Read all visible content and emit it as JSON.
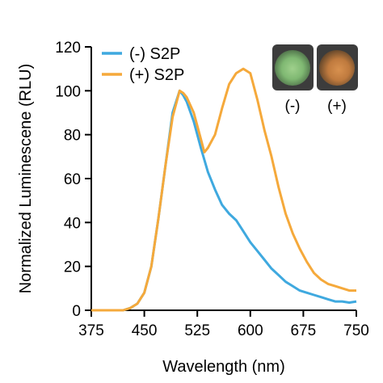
{
  "chart_data": {
    "type": "line",
    "title": "",
    "xlabel": "Wavelength (nm)",
    "ylabel": "Normalized Luminescene (RLU)",
    "xlim": [
      375,
      750
    ],
    "ylim": [
      0,
      120
    ],
    "xticks": [
      375,
      450,
      525,
      600,
      675,
      750
    ],
    "yticks": [
      0,
      20,
      40,
      60,
      80,
      100,
      120
    ],
    "grid": false,
    "legend_position": "top-left",
    "series": [
      {
        "name": "(-) S2P",
        "color": "#3fa9df",
        "x": [
          375,
          390,
          405,
          420,
          430,
          440,
          450,
          460,
          470,
          480,
          490,
          500,
          505,
          510,
          520,
          530,
          540,
          550,
          560,
          570,
          580,
          590,
          600,
          610,
          620,
          630,
          640,
          650,
          660,
          670,
          680,
          690,
          700,
          710,
          720,
          730,
          740,
          750
        ],
        "y": [
          0,
          0,
          0,
          0,
          1,
          3,
          8,
          20,
          42,
          66,
          90,
          100,
          98,
          95,
          86,
          74,
          63,
          55,
          48,
          44,
          41,
          36,
          31,
          27,
          23,
          19,
          16,
          13,
          11,
          9,
          8,
          7,
          6,
          5,
          4,
          4,
          3.5,
          4
        ]
      },
      {
        "name": "(+) S2P",
        "color": "#f5a93b",
        "x": [
          375,
          390,
          405,
          420,
          430,
          440,
          450,
          460,
          470,
          480,
          490,
          500,
          505,
          510,
          520,
          530,
          535,
          540,
          550,
          560,
          570,
          580,
          590,
          600,
          610,
          620,
          630,
          640,
          650,
          660,
          670,
          680,
          690,
          700,
          710,
          720,
          730,
          740,
          750
        ],
        "y": [
          0,
          0,
          0,
          0,
          1,
          3,
          8,
          20,
          42,
          66,
          88,
          100,
          99,
          97,
          90,
          78,
          72,
          74,
          80,
          92,
          103,
          108,
          110,
          108,
          96,
          82,
          70,
          56,
          44,
          35,
          28,
          22,
          17,
          14,
          12,
          11,
          10,
          9,
          9
        ]
      }
    ],
    "inset_labels": [
      "(-)",
      "(+)"
    ]
  }
}
